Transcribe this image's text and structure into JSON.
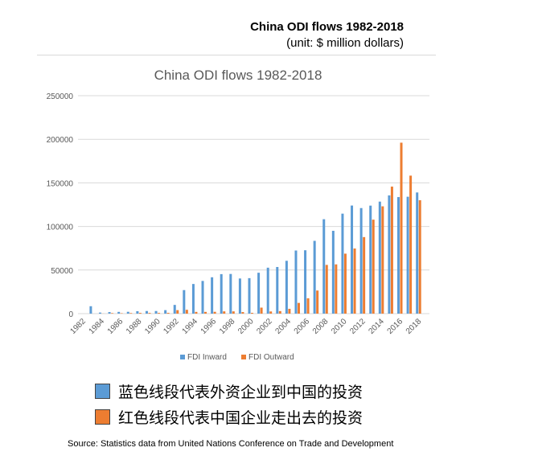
{
  "header": {
    "title": "China ODI flows 1982-2018",
    "unit": "(unit: $ million dollars)"
  },
  "notes": [
    {
      "text": "蓝色线段代表外资企业到中国的投资",
      "color": "#5b9bd5"
    },
    {
      "text": "红色线段代表中国企业走出去的投资",
      "color": "#ed7d31"
    }
  ],
  "source": "Source:  Statistics data from United Nations Conference on Trade and Development",
  "chart_data": {
    "type": "bar",
    "title": "China ODI flows 1982-2018",
    "xlabel": "",
    "ylabel": "",
    "ylim": [
      0,
      250000
    ],
    "yticks": [
      0,
      50000,
      100000,
      150000,
      200000,
      250000
    ],
    "grid": true,
    "legend": "bottom",
    "x": [
      1982,
      1983,
      1984,
      1985,
      1986,
      1987,
      1988,
      1989,
      1990,
      1991,
      1992,
      1993,
      1994,
      1995,
      1996,
      1997,
      1998,
      1999,
      2000,
      2001,
      2002,
      2003,
      2004,
      2005,
      2006,
      2007,
      2008,
      2009,
      2010,
      2011,
      2012,
      2013,
      2014,
      2015,
      2016,
      2017,
      2018
    ],
    "xticklabels": [
      "1982",
      "1984",
      "1986",
      "1988",
      "1990",
      "1992",
      "1994",
      "1996",
      "1998",
      "2000",
      "2002",
      "2004",
      "2006",
      "2008",
      "2010",
      "2012",
      "2014",
      "2016",
      "2018"
    ],
    "series": [
      {
        "name": "FDI Inward",
        "color": "#5b9bd5",
        "values": [
          0,
          8500,
          1200,
          1800,
          2000,
          2100,
          2800,
          3000,
          3000,
          4000,
          10000,
          27000,
          34000,
          37500,
          41700,
          45300,
          45500,
          40300,
          40700,
          46900,
          52700,
          53500,
          60600,
          72400,
          72700,
          83500,
          108300,
          95000,
          114700,
          124000,
          121100,
          123900,
          128500,
          135600,
          133700,
          134100,
          139000
        ]
      },
      {
        "name": "FDI Outward",
        "color": "#ed7d31",
        "values": [
          0,
          0,
          100,
          600,
          450,
          650,
          850,
          800,
          800,
          900,
          4000,
          4400,
          2000,
          2000,
          2100,
          2600,
          2600,
          1800,
          900,
          6900,
          2500,
          2900,
          5500,
          12300,
          17600,
          26500,
          55900,
          56500,
          68800,
          74700,
          87800,
          107800,
          123100,
          145700,
          196100,
          158300,
          130100
        ]
      }
    ]
  }
}
